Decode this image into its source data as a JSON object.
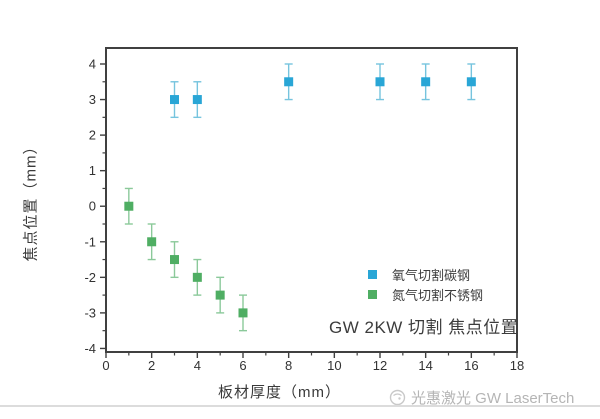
{
  "chart_data": {
    "type": "scatter",
    "title": "GW 2KW 切割 焦点位置",
    "xlabel": "板材厚度（mm）",
    "ylabel": "焦点位置（mm）",
    "xlim": [
      0,
      18
    ],
    "ylim": [
      -4.1,
      4.45
    ],
    "x_major_ticks": [
      0,
      2,
      4,
      6,
      8,
      10,
      12,
      14,
      16,
      18
    ],
    "x_minor_ticks": [
      1,
      3,
      5,
      7,
      9,
      11,
      13,
      15,
      17
    ],
    "y_major_ticks": [
      -4,
      -3,
      -2,
      -1,
      0,
      1,
      2,
      3,
      4
    ],
    "y_minor_ticks": [
      -3.5,
      -2.5,
      -1.5,
      -0.5,
      0.5,
      1.5,
      2.5,
      3.5
    ],
    "grid": false,
    "legend_position": "middle-right",
    "axis_color": "#404040",
    "tick_label_color": "#333333",
    "series": [
      {
        "name": "氧气切割碳钢",
        "marker": "square",
        "color": "#29a6d6",
        "errorbar_color": "#76c4de",
        "x": [
          3,
          4,
          8,
          12,
          14,
          16
        ],
        "y": [
          3,
          3,
          3.5,
          3.5,
          3.5,
          3.5
        ],
        "yerr": 0.5
      },
      {
        "name": "氮气切割不锈钢",
        "marker": "square",
        "color": "#4fae63",
        "errorbar_color": "#8bc99a",
        "x": [
          1,
          2,
          3,
          4,
          5,
          6
        ],
        "y": [
          0,
          -1,
          -1.5,
          -2,
          -2.5,
          -3
        ],
        "yerr": 0.5
      }
    ]
  },
  "footer": {
    "brand": "光惠激光 GW LaserTech",
    "logo": "swirl-logo-icon"
  }
}
